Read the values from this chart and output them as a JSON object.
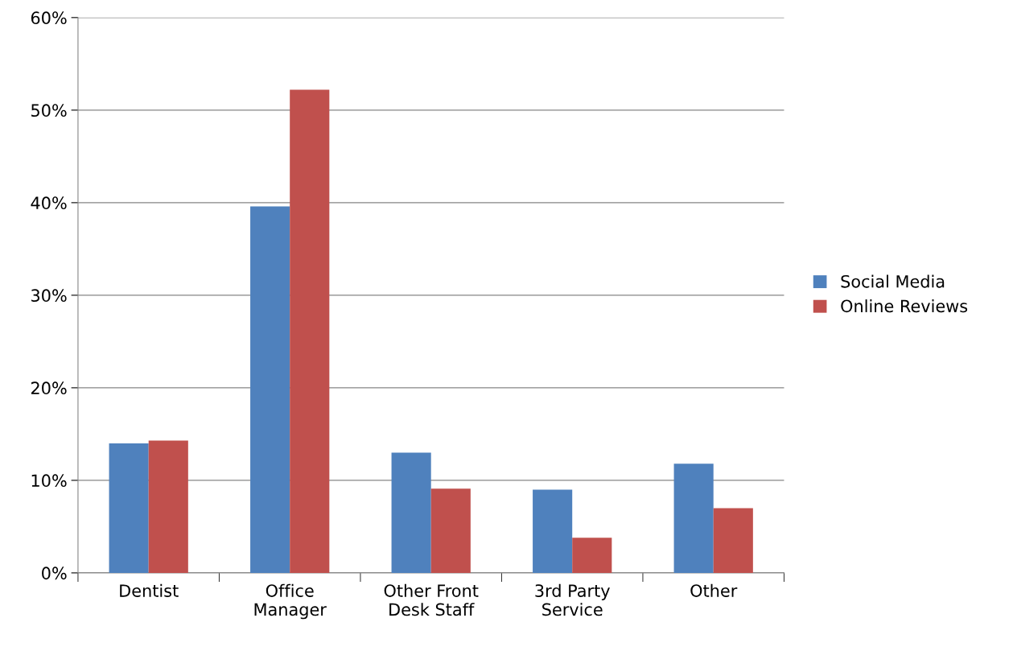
{
  "chart_data": {
    "type": "bar",
    "categories": [
      "Dentist",
      "Office\nManager",
      "Other Front\nDesk Staff",
      "3rd Party\nService",
      "Other"
    ],
    "series": [
      {
        "name": "Social Media",
        "color": "#4f81bd",
        "values": [
          14.0,
          39.6,
          13.0,
          9.0,
          11.8
        ]
      },
      {
        "name": "Online Reviews",
        "color": "#c0504d",
        "values": [
          14.3,
          52.2,
          9.1,
          3.8,
          7.0
        ]
      }
    ],
    "ylim": [
      0,
      60
    ],
    "yticks": [
      {
        "value": 0,
        "label": "0%"
      },
      {
        "value": 10,
        "label": "10%"
      },
      {
        "value": 20,
        "label": "20%"
      },
      {
        "value": 30,
        "label": "30%"
      },
      {
        "value": 40,
        "label": "40%"
      },
      {
        "value": 50,
        "label": "50%"
      },
      {
        "value": 60,
        "label": "60%"
      }
    ],
    "grid": "y",
    "legend": "right"
  }
}
